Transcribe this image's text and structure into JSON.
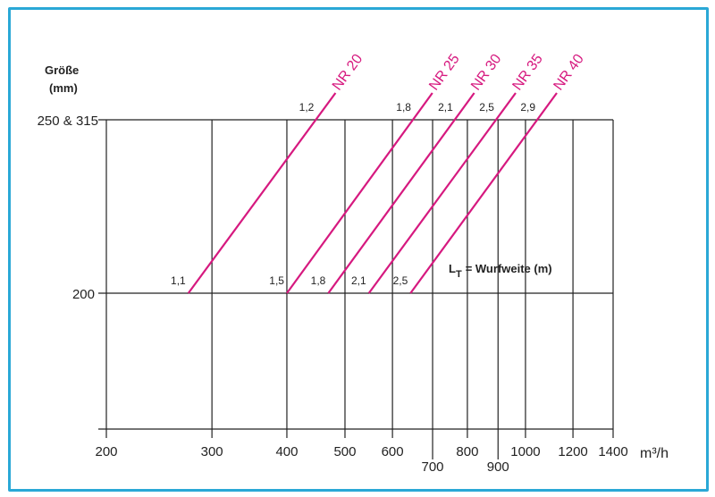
{
  "chart_data": {
    "type": "line",
    "title": "",
    "ylabel_line1": "Größe",
    "ylabel_line2": "(mm)",
    "xlabel": "m³/h",
    "xlabel_base": "m",
    "xlabel_sup": "3",
    "xlabel_tail": "/ h",
    "x_scale": "log",
    "xlim": [
      200,
      1400
    ],
    "x_ticks": [
      200,
      300,
      400,
      500,
      600,
      700,
      800,
      900,
      1000,
      1200,
      1400
    ],
    "x_tick_labels": [
      "200",
      "300",
      "400",
      "500",
      "600",
      "700",
      "800",
      "900",
      "1000",
      "1200",
      "1400"
    ],
    "y_categories": [
      "200",
      "250 & 315"
    ],
    "grid": true,
    "annotation": {
      "lt": "L",
      "lt_sub": "T",
      "text": "= Wurfweite (m)"
    },
    "series": [
      {
        "name": "NR 20",
        "flow_at_200": 274,
        "flow_at_250_315": 447,
        "throw_at_200": "1,1",
        "throw_at_250_315": "1,2"
      },
      {
        "name": "NR 25",
        "flow_at_200": 400,
        "flow_at_250_315": 649,
        "throw_at_200": "1,5",
        "throw_at_250_315": "1,8"
      },
      {
        "name": "NR 30",
        "flow_at_200": 469,
        "flow_at_250_315": 762,
        "throw_at_200": "1,8",
        "throw_at_250_315": "2,1"
      },
      {
        "name": "NR 35",
        "flow_at_200": 548,
        "flow_at_250_315": 893,
        "throw_at_200": "2,1",
        "throw_at_250_315": "2,5"
      },
      {
        "name": "NR 40",
        "flow_at_200": 643,
        "flow_at_250_315": 1046,
        "throw_at_200": "2,5",
        "throw_at_250_315": "2,9"
      }
    ],
    "colors": {
      "series": "#d6197f",
      "frame": "#2aa8d6",
      "grid": "#222222"
    }
  }
}
